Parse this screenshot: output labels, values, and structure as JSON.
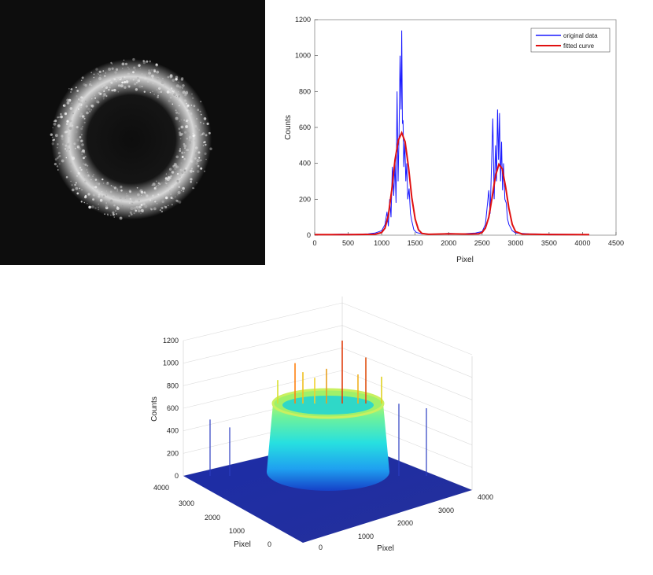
{
  "panels": {
    "ring_image": {
      "description_color": "#0d0d0d"
    },
    "line_chart": {
      "legend": [
        "original data",
        "fitted curve"
      ]
    }
  },
  "chart_data": [
    {
      "type": "line",
      "xlabel": "Pixel",
      "ylabel": "Counts",
      "xlim": [
        0,
        4500
      ],
      "ylim": [
        0,
        1200
      ],
      "xticks": [
        0,
        500,
        1000,
        1500,
        2000,
        2500,
        3000,
        3500,
        4000,
        4500
      ],
      "yticks": [
        0,
        200,
        400,
        600,
        800,
        1000,
        1200
      ],
      "legend_position": "top-right",
      "grid": false,
      "series": [
        {
          "name": "original data",
          "color": "#1a1aff",
          "x": [
            0,
            200,
            400,
            600,
            800,
            900,
            1000,
            1050,
            1080,
            1100,
            1120,
            1140,
            1160,
            1180,
            1200,
            1215,
            1230,
            1245,
            1260,
            1275,
            1290,
            1300,
            1310,
            1320,
            1330,
            1345,
            1360,
            1375,
            1390,
            1410,
            1430,
            1450,
            1480,
            1520,
            1600,
            1800,
            2000,
            2200,
            2400,
            2500,
            2550,
            2600,
            2620,
            2640,
            2660,
            2680,
            2700,
            2715,
            2730,
            2745,
            2760,
            2775,
            2790,
            2805,
            2820,
            2840,
            2860,
            2880,
            2900,
            2950,
            3000,
            3200,
            3500,
            3800,
            4100
          ],
          "y": [
            5,
            4,
            6,
            5,
            8,
            12,
            25,
            60,
            130,
            50,
            200,
            100,
            380,
            220,
            400,
            180,
            800,
            300,
            560,
            1000,
            700,
            1140,
            620,
            640,
            380,
            520,
            300,
            400,
            200,
            260,
            120,
            80,
            30,
            15,
            8,
            6,
            10,
            8,
            12,
            20,
            60,
            250,
            120,
            380,
            650,
            200,
            500,
            300,
            700,
            420,
            680,
            300,
            520,
            250,
            400,
            200,
            180,
            90,
            60,
            25,
            12,
            8,
            6,
            5,
            4
          ]
        },
        {
          "name": "fitted curve",
          "color": "#e01010",
          "x": [
            0,
            500,
            900,
            1000,
            1050,
            1100,
            1150,
            1200,
            1250,
            1300,
            1350,
            1400,
            1450,
            1500,
            1550,
            1600,
            1700,
            2000,
            2300,
            2450,
            2500,
            2550,
            2600,
            2650,
            2700,
            2750,
            2800,
            2850,
            2900,
            2950,
            3000,
            3100,
            3500,
            4100
          ],
          "y": [
            3,
            3,
            5,
            15,
            40,
            110,
            250,
            420,
            530,
            570,
            520,
            380,
            210,
            90,
            30,
            10,
            5,
            8,
            6,
            8,
            15,
            40,
            100,
            210,
            330,
            395,
            370,
            270,
            150,
            60,
            20,
            6,
            4,
            3
          ]
        }
      ]
    },
    {
      "type": "surface",
      "zlabel": "Counts",
      "xlabel": "Pixel",
      "ylabel": "Pixel",
      "zlim": [
        0,
        1200
      ],
      "zticks": [
        0,
        200,
        400,
        600,
        800,
        1000,
        1200
      ],
      "xticks": [
        0,
        1000,
        2000,
        3000,
        4000
      ],
      "yticks": [
        0,
        1000,
        2000,
        3000,
        4000
      ],
      "grid": true
    }
  ]
}
